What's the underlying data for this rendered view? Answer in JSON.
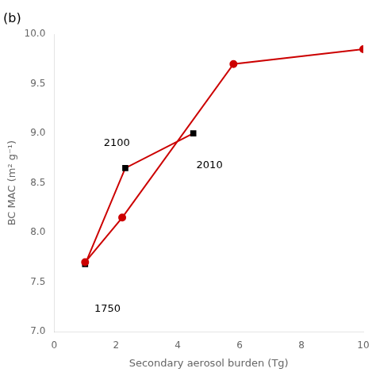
{
  "chart_data": {
    "type": "line",
    "title": "(b)",
    "xlabel": "Secondary aerosol burden (Tg)",
    "ylabel": "BC MAC (m² g⁻¹)",
    "xlim": [
      0,
      10
    ],
    "xticks": [
      0,
      2,
      4,
      6,
      8,
      10
    ],
    "ylim": [
      7.0,
      10.0
    ],
    "yticks": [
      {
        "value": 7.0,
        "label": "7.0"
      },
      7.5,
      {
        "value": 8.0,
        "label": "8.0"
      },
      8.5,
      {
        "value": 9.0,
        "label": "9.0"
      },
      9.5,
      {
        "value": 10.0,
        "label": "10.0"
      }
    ],
    "grid": false,
    "series": [
      {
        "x": [
          1.0,
          2.2,
          5.8,
          10.0
        ],
        "values": [
          7.7,
          8.15,
          9.7,
          9.85
        ],
        "color": "#cc0000",
        "marker": "circle"
      },
      {
        "x": [
          1.0,
          2.3,
          4.5
        ],
        "values": [
          7.68,
          8.65,
          9.0
        ],
        "color": "#cc0000",
        "colors": [
          "#000000",
          "#000000",
          "#000000"
        ],
        "marker": "square"
      }
    ],
    "annotations": [
      {
        "text": "1750",
        "x": 1.3,
        "y": 7.28
      },
      {
        "text": "2100",
        "x": 1.6,
        "y": 8.95
      },
      {
        "text": "2010",
        "x": 4.6,
        "y": 8.73
      }
    ]
  }
}
